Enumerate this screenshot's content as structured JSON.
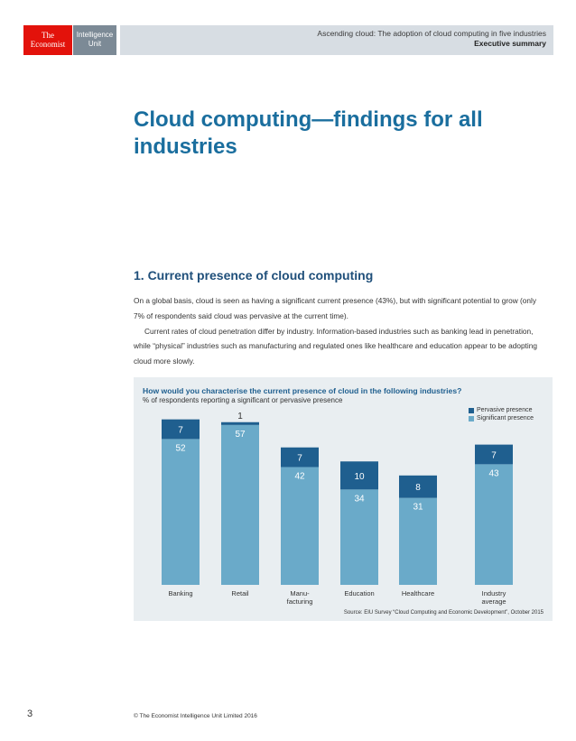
{
  "header": {
    "logo_left_line1": "The",
    "logo_left_line2": "Economist",
    "logo_right_line1": "Intelligence",
    "logo_right_line2": "Unit",
    "report_title": "Ascending cloud: The adoption of cloud computing in five industries",
    "section_label": "Executive summary"
  },
  "page_title": "Cloud computing—findings for all industries",
  "section": {
    "title": "1. Current presence of cloud computing",
    "paragraph1": "On a global basis, cloud is seen as having a significant current presence (43%), but with significant potential to grow (only 7% of respondents said cloud was pervasive at the current time).",
    "paragraph2": "Current rates of cloud penetration differ by industry. Information-based industries such as banking lead in penetration, while “physical” industries such as manufacturing and regulated ones like healthcare and education appear to be adopting cloud more slowly."
  },
  "chart_data": {
    "type": "bar",
    "stacked": true,
    "title": "How would you characterise the current presence of cloud in the following industries?",
    "subtitle": "% of respondents reporting a significant or pervasive presence",
    "categories": [
      "Banking",
      "Retail",
      "Manu-\nfacturing",
      "Education",
      "Healthcare",
      "Industry\naverage"
    ],
    "series": [
      {
        "name": "Significant presence",
        "values": [
          52,
          57,
          42,
          34,
          31,
          43
        ],
        "color": "#6aaac9"
      },
      {
        "name": "Pervasive presence",
        "values": [
          7,
          1,
          7,
          10,
          8,
          7
        ],
        "color": "#1f5f8f"
      }
    ],
    "ylim": [
      0,
      65
    ],
    "grid": false,
    "legend_position": "top-right",
    "source": "Source: EIU Survey “Cloud Computing and Economic Development”, October 2015"
  },
  "colors": {
    "brand_red": "#e3120b",
    "title_blue": "#1a6e9e",
    "dark_blue": "#1f5f8f",
    "light_blue": "#6aaac9",
    "panel_bg": "#e9eef1"
  },
  "footer": {
    "page_number": "3",
    "copyright": "© The Economist Intelligence Unit Limited 2016"
  }
}
